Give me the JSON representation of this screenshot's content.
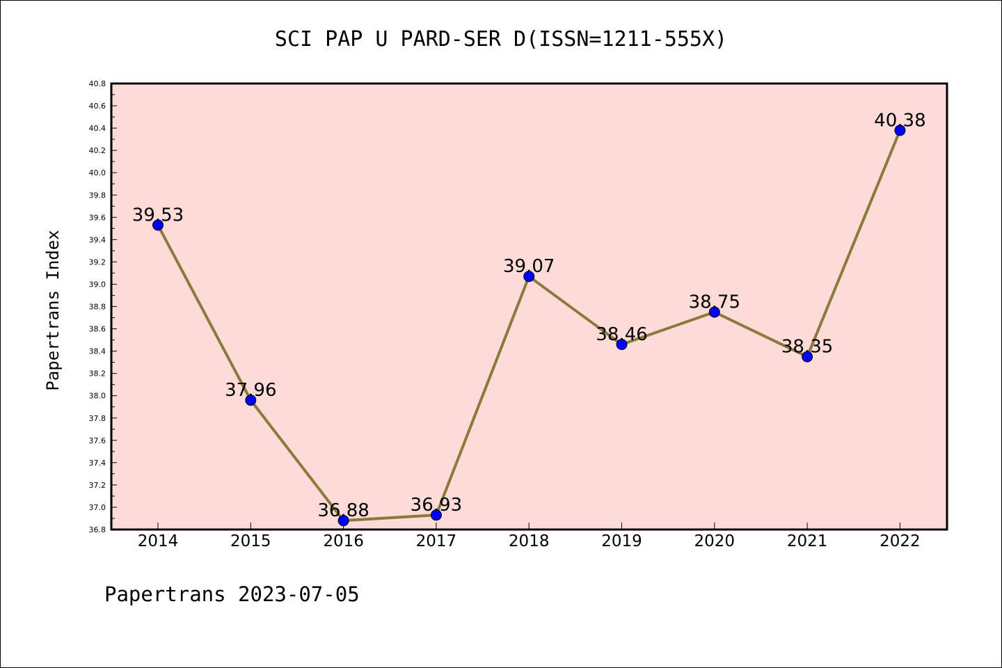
{
  "chart_data": {
    "type": "line",
    "title": "SCI PAP U PARD-SER D(ISSN=1211-555X)",
    "ylabel": "Papertrans Index",
    "xlabel": "",
    "categories": [
      "2014",
      "2015",
      "2016",
      "2017",
      "2018",
      "2019",
      "2020",
      "2021",
      "2022"
    ],
    "values": [
      39.53,
      37.96,
      36.88,
      36.93,
      39.07,
      38.46,
      38.75,
      38.35,
      40.38
    ],
    "data_labels": [
      "39.53",
      "37.96",
      "36.88",
      "36.93",
      "39.07",
      "38.46",
      "38.75",
      "38.35",
      "40.38"
    ],
    "ylim": [
      36.8,
      40.8
    ],
    "yticks": [
      "36.8",
      "37.0",
      "37.2",
      "37.4",
      "37.6",
      "37.8",
      "38.0",
      "38.2",
      "38.4",
      "38.6",
      "38.8",
      "39.0",
      "39.2",
      "39.4",
      "39.6",
      "39.8",
      "40.0",
      "40.2",
      "40.4",
      "40.6",
      "40.8"
    ],
    "grid": false,
    "colors": {
      "plot_background": "#fddbd9",
      "line": "#8b7a3a",
      "marker": "#0000ff"
    }
  },
  "footer": "Papertrans 2023-07-05"
}
